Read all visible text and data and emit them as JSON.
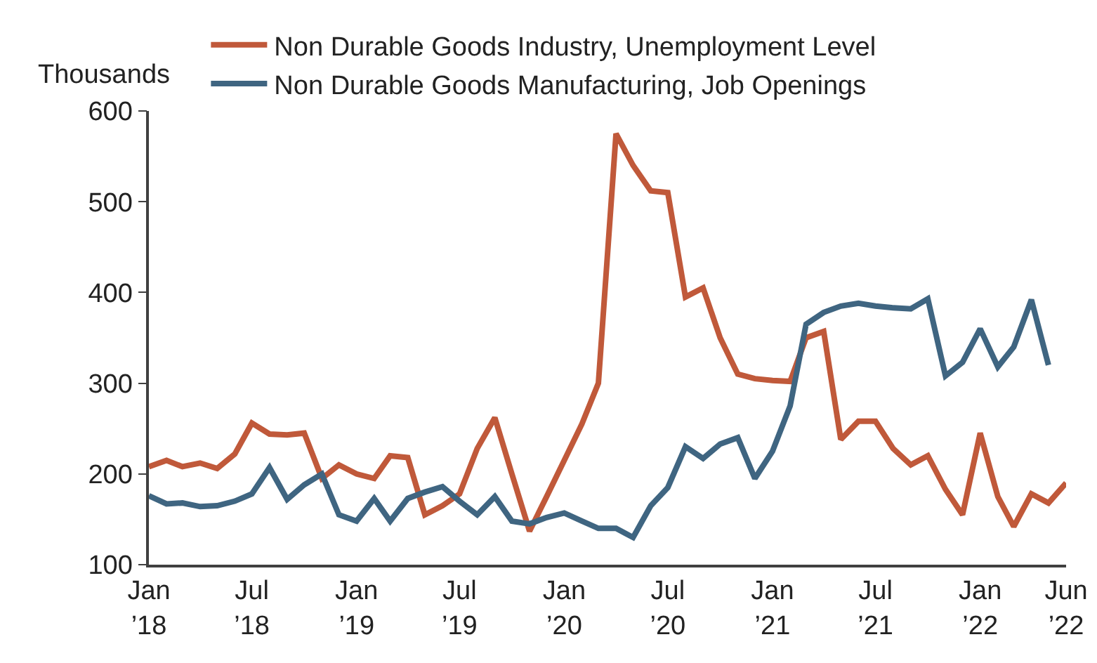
{
  "chart_data": {
    "type": "line",
    "ylabel": "Thousands",
    "x": [
      "2018-01",
      "2018-02",
      "2018-03",
      "2018-04",
      "2018-05",
      "2018-06",
      "2018-07",
      "2018-08",
      "2018-09",
      "2018-10",
      "2018-11",
      "2018-12",
      "2019-01",
      "2019-02",
      "2019-03",
      "2019-04",
      "2019-05",
      "2019-06",
      "2019-07",
      "2019-08",
      "2019-09",
      "2019-10",
      "2019-11",
      "2019-12",
      "2020-01",
      "2020-02",
      "2020-03",
      "2020-04",
      "2020-05",
      "2020-06",
      "2020-07",
      "2020-08",
      "2020-09",
      "2020-10",
      "2020-11",
      "2020-12",
      "2021-01",
      "2021-02",
      "2021-03",
      "2021-04",
      "2021-05",
      "2021-06",
      "2021-07",
      "2021-08",
      "2021-09",
      "2021-10",
      "2021-11",
      "2021-12",
      "2022-01",
      "2022-02",
      "2022-03",
      "2022-04",
      "2022-05",
      "2022-06"
    ],
    "series": [
      {
        "name": "Non Durable Goods Industry, Unemployment Level",
        "color": "#c0593a",
        "values": [
          208,
          215,
          208,
          212,
          206,
          222,
          256,
          244,
          243,
          245,
          195,
          210,
          200,
          195,
          220,
          218,
          155,
          165,
          178,
          228,
          262,
          200,
          137,
          175,
          215,
          255,
          300,
          575,
          540,
          512,
          510,
          395,
          405,
          350,
          310,
          305,
          303,
          302,
          350,
          357,
          238,
          258,
          258,
          228,
          210,
          220,
          183,
          155,
          245,
          175,
          142,
          178,
          168,
          190
        ]
      },
      {
        "name": "Non Durable Goods Manufacturing, Job Openings",
        "color": "#3f6581",
        "values": [
          176,
          167,
          168,
          164,
          165,
          170,
          178,
          207,
          172,
          188,
          200,
          155,
          148,
          173,
          148,
          173,
          180,
          186,
          170,
          155,
          175,
          148,
          145,
          152,
          157,
          148,
          140,
          140,
          130,
          165,
          185,
          230,
          217,
          233,
          240,
          195,
          225,
          275,
          365,
          378,
          385,
          388,
          385,
          383,
          382,
          393,
          308,
          323,
          360,
          318,
          340,
          392,
          320,
          null
        ]
      }
    ],
    "xlim": [
      "2018-01",
      "2022-06"
    ],
    "xticks": [
      {
        "value": "2018-01",
        "label": "Jan\n’18"
      },
      {
        "value": "2018-07",
        "label": "Jul\n’18"
      },
      {
        "value": "2019-01",
        "label": "Jan\n’19"
      },
      {
        "value": "2019-07",
        "label": "Jul\n’19"
      },
      {
        "value": "2020-01",
        "label": "Jan\n’20"
      },
      {
        "value": "2020-07",
        "label": "Jul\n’20"
      },
      {
        "value": "2021-01",
        "label": "Jan\n’21"
      },
      {
        "value": "2021-07",
        "label": "Jul\n’21"
      },
      {
        "value": "2022-01",
        "label": "Jan\n’22"
      },
      {
        "value": "2022-06",
        "label": "Jun\n’22"
      }
    ],
    "ylim": [
      100,
      600
    ],
    "yticks": [
      100,
      200,
      300,
      400,
      500,
      600
    ],
    "grid": false,
    "legend": "top",
    "marker": "none",
    "line_style": "solid"
  }
}
